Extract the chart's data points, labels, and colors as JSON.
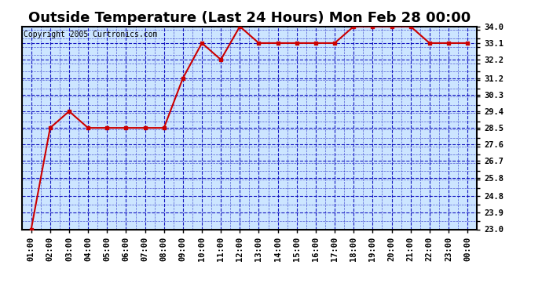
{
  "title": "Outside Temperature (Last 24 Hours) Mon Feb 28 00:00",
  "copyright": "Copyright 2005 Curtronics.com",
  "x_labels": [
    "01:00",
    "02:00",
    "03:00",
    "04:00",
    "05:00",
    "06:00",
    "07:00",
    "08:00",
    "09:00",
    "10:00",
    "11:00",
    "12:00",
    "13:00",
    "14:00",
    "15:00",
    "16:00",
    "17:00",
    "18:00",
    "19:00",
    "20:00",
    "21:00",
    "22:00",
    "23:00",
    "00:00"
  ],
  "x_values": [
    1,
    2,
    3,
    4,
    5,
    6,
    7,
    8,
    9,
    10,
    11,
    12,
    13,
    14,
    15,
    16,
    17,
    18,
    19,
    20,
    21,
    22,
    23,
    24
  ],
  "y_values": [
    23.0,
    28.5,
    29.4,
    28.5,
    28.5,
    28.5,
    28.5,
    28.5,
    31.2,
    33.1,
    32.2,
    34.0,
    33.1,
    33.1,
    33.1,
    33.1,
    33.1,
    34.0,
    34.0,
    34.0,
    34.0,
    33.1,
    33.1,
    33.1
  ],
  "yticks": [
    23.0,
    23.9,
    24.8,
    25.8,
    26.7,
    27.6,
    28.5,
    29.4,
    30.3,
    31.2,
    32.2,
    33.1,
    34.0
  ],
  "ylim": [
    23.0,
    34.0
  ],
  "line_color": "#cc0000",
  "marker_color": "#cc0000",
  "plot_bg": "#cce5ff",
  "title_fontsize": 13,
  "copyright_fontsize": 7,
  "tick_fontsize": 7.5,
  "grid_color": "#0000bb",
  "border_color": "#000000",
  "fig_bg": "#ffffff"
}
